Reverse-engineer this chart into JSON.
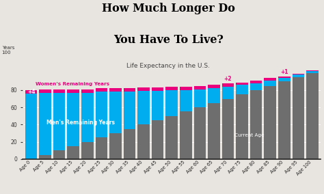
{
  "ages": [
    0,
    5,
    10,
    15,
    20,
    25,
    30,
    35,
    40,
    45,
    50,
    55,
    60,
    65,
    70,
    75,
    80,
    85,
    90,
    95,
    100
  ],
  "men_remaining": [
    76,
    72,
    67,
    62,
    57,
    53,
    48,
    43,
    39,
    34,
    30,
    25,
    21,
    17,
    14,
    11,
    8,
    6,
    4,
    3,
    2
  ],
  "women_extra": [
    4,
    4,
    4,
    4,
    4,
    4,
    4,
    4,
    4,
    4,
    4,
    4,
    4,
    4,
    4,
    3,
    3,
    3,
    2,
    1,
    1
  ],
  "labels": [
    "Age 0",
    "Age 5",
    "Age 10",
    "Age 15",
    "Age 20",
    "Age 25",
    "Age 30",
    "Age 35",
    "Age 40",
    "Age 45",
    "Age 50",
    "Age 55",
    "Age 60",
    "Age 65",
    "Age 70",
    "Age 75",
    "Age 80",
    "Age 85",
    "Age 90",
    "Age 95",
    "Age 100"
  ],
  "color_gray": "#6e6e6e",
  "color_blue": "#00AEEF",
  "color_pink": "#e8007d",
  "title_line1": "How Much Longer Do",
  "title_line2": "You Have To Live?",
  "subtitle": "Life Expectancy in the U.S.",
  "bg_color": "#e8e4df",
  "annotation_plus4": "+4",
  "annotation_plus2": "+2",
  "annotation_plus1": "+1",
  "label_women": "Women's Remaining Years",
  "label_men": "Men's Remaining Years",
  "label_age": "Current Age",
  "years_label": "Years\n100"
}
